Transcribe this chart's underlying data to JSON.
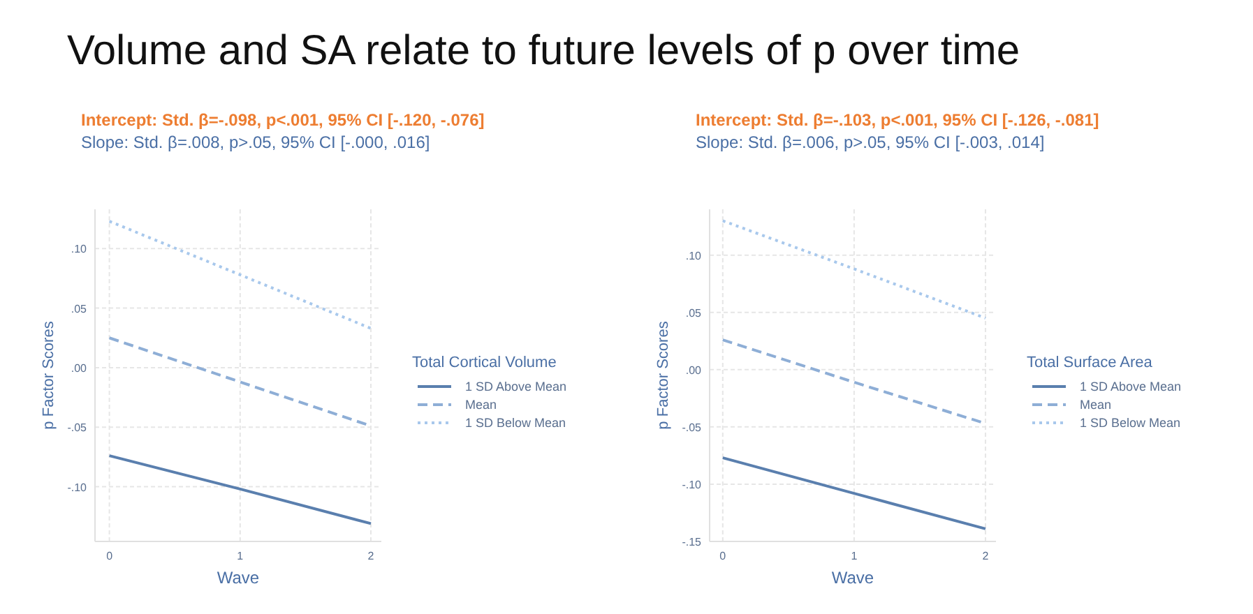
{
  "chart_data": [
    {
      "type": "line",
      "title": "Volume and SA relate to future levels of p over time",
      "annotations": [
        "Intercept: Std. β=-.098, p<.001, 95% CI [-.120, -.076]",
        "Slope: Std. β=.008, p>.05, 95% CI [-.000, .016]"
      ],
      "xlabel": "Wave",
      "ylabel": "p Factor Scores",
      "legend_title": "Total Cortical Volume",
      "x": [
        0,
        1,
        2
      ],
      "xlim": [
        -0.11,
        2.08
      ],
      "xticks": [
        0,
        1,
        2
      ],
      "ylim": [
        -0.146,
        0.133
      ],
      "yticks": [
        {
          "value": -0.1,
          "label": "-.10"
        },
        {
          "value": -0.05,
          "label": "-.05"
        },
        {
          "value": 0,
          "label": ".00"
        },
        {
          "value": 0.05,
          "label": ".05"
        },
        {
          "value": 0.1,
          "label": ".10"
        }
      ],
      "grid": true,
      "legend": "right",
      "series": [
        {
          "name": "1 SD Above Mean",
          "color": "#5a7fae",
          "line_style": "solid",
          "values": [
            -0.074,
            -0.102,
            -0.131
          ]
        },
        {
          "name": "Mean",
          "color": "#8eaed6",
          "line_style": "dashed",
          "values": [
            0.025,
            -0.012,
            -0.049
          ]
        },
        {
          "name": "1 SD Below Mean",
          "color": "#a8c8ec",
          "line_style": "dotted",
          "values": [
            0.123,
            0.078,
            0.033
          ]
        }
      ]
    },
    {
      "type": "line",
      "annotations": [
        "Intercept: Std. β=-.103, p<.001, 95% CI [-.126, -.081]",
        "Slope: Std. β=.006, p>.05, 95% CI [-.003, .014]"
      ],
      "xlabel": "Wave",
      "ylabel": "p Factor Scores",
      "legend_title": "Total Surface Area",
      "x": [
        0,
        1,
        2
      ],
      "xlim": [
        -0.1,
        2.08
      ],
      "xticks": [
        0,
        1,
        2
      ],
      "ylim": [
        -0.15,
        0.14
      ],
      "yticks": [
        {
          "value": -0.15,
          "label": "-.15"
        },
        {
          "value": -0.1,
          "label": "-.10"
        },
        {
          "value": -0.05,
          "label": "-.05"
        },
        {
          "value": 0,
          "label": ".00"
        },
        {
          "value": 0.05,
          "label": ".05"
        },
        {
          "value": 0.1,
          "label": ".10"
        }
      ],
      "grid": true,
      "legend": "right",
      "series": [
        {
          "name": "1 SD Above Mean",
          "color": "#5a7fae",
          "line_style": "solid",
          "values": [
            -0.077,
            -0.108,
            -0.139
          ]
        },
        {
          "name": "Mean",
          "color": "#8eaed6",
          "line_style": "dashed",
          "values": [
            0.026,
            -0.011,
            -0.047
          ]
        },
        {
          "name": "1 SD Below Mean",
          "color": "#a8c8ec",
          "line_style": "dotted",
          "values": [
            0.13,
            0.088,
            0.045
          ]
        }
      ]
    }
  ]
}
